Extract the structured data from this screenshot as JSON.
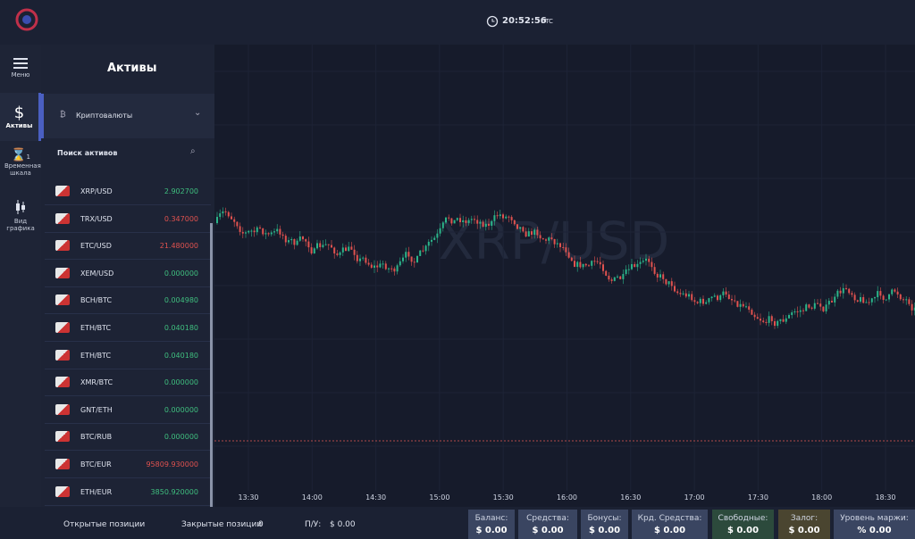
{
  "header": {
    "time": "20:52:56",
    "timezone": "UTC"
  },
  "sidebar": {
    "items": [
      {
        "label": "Меню"
      },
      {
        "label": "Активы"
      },
      {
        "label": "Временная шкала",
        "badge": "1"
      },
      {
        "label": "Вид графика"
      }
    ]
  },
  "assets_panel": {
    "title": "Активы",
    "category": "Криптовалюты",
    "search_placeholder": "Поиск активов",
    "rows": [
      {
        "name": "XRP/USD",
        "price": "2.902700",
        "color": "#3fbf7f"
      },
      {
        "name": "TRX/USD",
        "price": "0.347000",
        "color": "#e0524f"
      },
      {
        "name": "ETC/USD",
        "price": "21.480000",
        "color": "#e0524f"
      },
      {
        "name": "XEM/USD",
        "price": "0.000000",
        "color": "#3fbf7f"
      },
      {
        "name": "BCH/BTC",
        "price": "0.004980",
        "color": "#3fbf7f"
      },
      {
        "name": "ETH/BTC",
        "price": "0.040180",
        "color": "#3fbf7f"
      },
      {
        "name": "ETH/BTC",
        "price": "0.040180",
        "color": "#3fbf7f"
      },
      {
        "name": "XMR/BTC",
        "price": "0.000000",
        "color": "#3fbf7f"
      },
      {
        "name": "GNT/ETH",
        "price": "0.000000",
        "color": "#3fbf7f"
      },
      {
        "name": "BTC/RUB",
        "price": "0.000000",
        "color": "#3fbf7f"
      },
      {
        "name": "BTC/EUR",
        "price": "95809.930000",
        "color": "#e0524f"
      },
      {
        "name": "ETH/EUR",
        "price": "3850.920000",
        "color": "#3fbf7f"
      }
    ]
  },
  "chart": {
    "watermark": "XRP/USD",
    "x_labels": [
      "13:30",
      "14:00",
      "14:30",
      "15:00",
      "15:30",
      "16:00",
      "16:30",
      "17:00",
      "17:30",
      "18:00",
      "18:30"
    ]
  },
  "footer": {
    "open_positions": "Открытые позиции",
    "closed_positions": "Закрытые позиции",
    "closed_count": "0",
    "pnl_label": "П/У:",
    "pnl_value": "$ 0.00",
    "stats": [
      {
        "label": "Баланс:",
        "value": "$ 0.00",
        "color": "#3a4561"
      },
      {
        "label": "Средства:",
        "value": "$ 0.00",
        "color": "#3a4561"
      },
      {
        "label": "Бонусы:",
        "value": "$ 0.00",
        "color": "#3a4561"
      },
      {
        "label": "Крд. Средства:",
        "value": "$ 0.00",
        "color": "#3a4561"
      },
      {
        "label": "Свободные:",
        "value": "$ 0.00",
        "color": "#2c4a3c"
      },
      {
        "label": "Залог:",
        "value": "$ 0.00",
        "color": "#4a4530"
      },
      {
        "label": "Уровень маржи:",
        "value": "% 0.00",
        "color": "#3a4561"
      }
    ]
  }
}
